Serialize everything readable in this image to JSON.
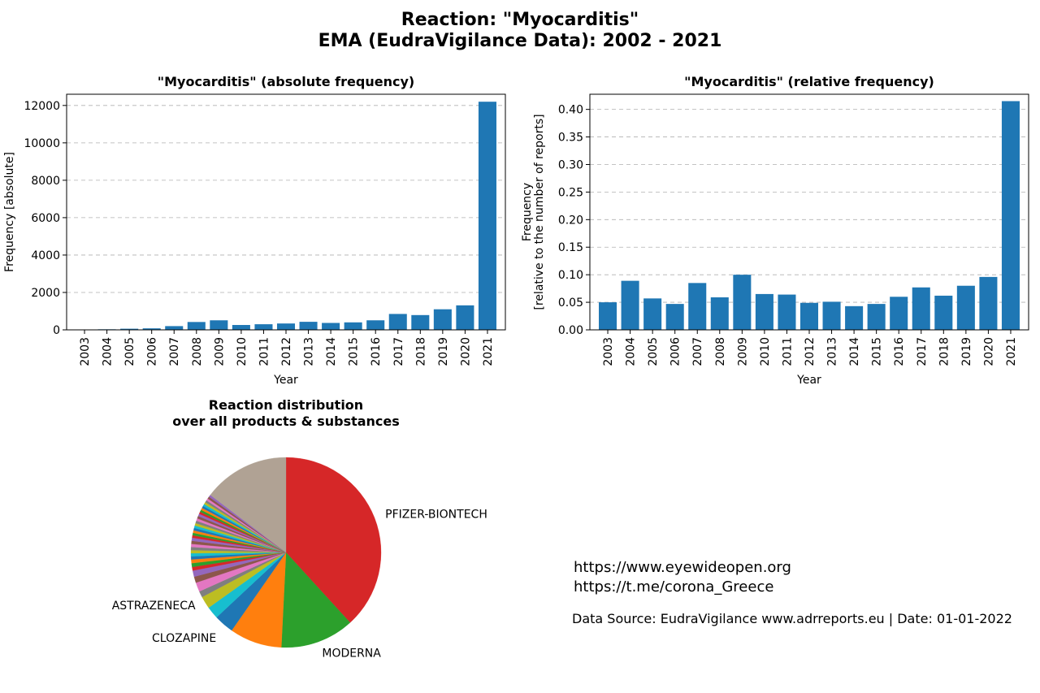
{
  "title_line1": "Reaction: \"Myocarditis\"",
  "title_line2": "EMA (EudraVigilance Data): 2002 - 2021",
  "chart_data": [
    {
      "type": "bar",
      "title": "\"Myocarditis\" (absolute frequency)",
      "xlabel": "Year",
      "ylabel": "Frequency [absolute]",
      "categories": [
        "2003",
        "2004",
        "2005",
        "2006",
        "2007",
        "2008",
        "2009",
        "2010",
        "2011",
        "2012",
        "2013",
        "2014",
        "2015",
        "2016",
        "2017",
        "2018",
        "2019",
        "2020",
        "2021"
      ],
      "values": [
        10,
        30,
        60,
        80,
        200,
        420,
        510,
        260,
        300,
        340,
        430,
        370,
        400,
        510,
        850,
        790,
        1100,
        1310,
        12200
      ],
      "ylim": [
        0,
        12600
      ],
      "yticks": [
        "0",
        "2000",
        "4000",
        "6000",
        "8000",
        "10000",
        "12000"
      ],
      "ytick_values": [
        0,
        2000,
        4000,
        6000,
        8000,
        10000,
        12000
      ],
      "grid": true,
      "color": "#1f77b4"
    },
    {
      "type": "bar",
      "title": "\"Myocarditis\" (relative frequency)",
      "xlabel": "Year",
      "ylabel_lines": [
        "Frequency",
        "[relative to the number of reports]"
      ],
      "categories": [
        "2003",
        "2004",
        "2005",
        "2006",
        "2007",
        "2008",
        "2009",
        "2010",
        "2011",
        "2012",
        "2013",
        "2014",
        "2015",
        "2016",
        "2017",
        "2018",
        "2019",
        "2020",
        "2021"
      ],
      "values": [
        0.05,
        0.089,
        0.057,
        0.047,
        0.085,
        0.059,
        0.1,
        0.065,
        0.064,
        0.049,
        0.051,
        0.043,
        0.047,
        0.06,
        0.077,
        0.062,
        0.08,
        0.096,
        0.415
      ],
      "ylim": [
        0,
        0.4275
      ],
      "yticks": [
        "0.00",
        "0.05",
        "0.10",
        "0.15",
        "0.20",
        "0.25",
        "0.30",
        "0.35",
        "0.40"
      ],
      "ytick_values": [
        0,
        0.05,
        0.1,
        0.15,
        0.2,
        0.25,
        0.3,
        0.35,
        0.4
      ],
      "grid": true,
      "color": "#1f77b4"
    },
    {
      "type": "pie",
      "title_lines": [
        "Reaction distribution",
        "over all products & substances"
      ],
      "slices": [
        {
          "label": "PFIZER-BIONTECH",
          "value": 36.5,
          "color": "#d62728"
        },
        {
          "label": "MODERNA",
          "value": 12.0,
          "color": "#2ca02c"
        },
        {
          "label": "",
          "value": 8.5,
          "color": "#ff7f0e"
        },
        {
          "label": "CLOZAPINE",
          "value": 3.2,
          "color": "#1f77b4"
        },
        {
          "label": "",
          "value": 2.0,
          "color": "#17becf"
        },
        {
          "label": "ASTRAZENECA",
          "value": 2.0,
          "color": "#bcbd22"
        },
        {
          "label": "",
          "value": 1.0,
          "color": "#7f7f7f"
        },
        {
          "label": "",
          "value": 1.5,
          "color": "#e377c2"
        },
        {
          "label": "",
          "value": 1.0,
          "color": "#8c564b"
        },
        {
          "label": "",
          "value": 1.0,
          "color": "#9467bd"
        },
        {
          "label": "",
          "value": 0.6,
          "color": "#d62728"
        },
        {
          "label": "",
          "value": 0.6,
          "color": "#2ca02c"
        },
        {
          "label": "",
          "value": 0.6,
          "color": "#ff7f0e"
        },
        {
          "label": "",
          "value": 0.5,
          "color": "#1f77b4"
        },
        {
          "label": "",
          "value": 0.5,
          "color": "#17becf"
        },
        {
          "label": "",
          "value": 0.5,
          "color": "#bcbd22"
        },
        {
          "label": "",
          "value": 0.5,
          "color": "#7f7f7f"
        },
        {
          "label": "",
          "value": 0.5,
          "color": "#e377c2"
        },
        {
          "label": "",
          "value": 0.5,
          "color": "#8c564b"
        },
        {
          "label": "",
          "value": 0.5,
          "color": "#9467bd"
        },
        {
          "label": "",
          "value": 0.4,
          "color": "#d62728"
        },
        {
          "label": "",
          "value": 0.4,
          "color": "#2ca02c"
        },
        {
          "label": "",
          "value": 0.4,
          "color": "#ff7f0e"
        },
        {
          "label": "",
          "value": 0.4,
          "color": "#1f77b4"
        },
        {
          "label": "",
          "value": 0.4,
          "color": "#17becf"
        },
        {
          "label": "",
          "value": 0.4,
          "color": "#bcbd22"
        },
        {
          "label": "",
          "value": 0.4,
          "color": "#7f7f7f"
        },
        {
          "label": "",
          "value": 0.4,
          "color": "#e377c2"
        },
        {
          "label": "",
          "value": 0.4,
          "color": "#8c564b"
        },
        {
          "label": "",
          "value": 0.4,
          "color": "#9467bd"
        },
        {
          "label": "",
          "value": 0.35,
          "color": "#d62728"
        },
        {
          "label": "",
          "value": 0.35,
          "color": "#2ca02c"
        },
        {
          "label": "",
          "value": 0.35,
          "color": "#ff7f0e"
        },
        {
          "label": "",
          "value": 0.35,
          "color": "#1f77b4"
        },
        {
          "label": "",
          "value": 0.35,
          "color": "#17becf"
        },
        {
          "label": "",
          "value": 0.35,
          "color": "#bcbd22"
        },
        {
          "label": "",
          "value": 0.35,
          "color": "#7f7f7f"
        },
        {
          "label": "",
          "value": 0.35,
          "color": "#e377c2"
        },
        {
          "label": "",
          "value": 0.35,
          "color": "#8c564b"
        },
        {
          "label": "",
          "value": 0.35,
          "color": "#9467bd"
        },
        {
          "label": "",
          "value": 14.0,
          "color": "#b0a294"
        }
      ]
    }
  ],
  "footer": {
    "link1": "https://www.eyewideopen.org",
    "link2": "https://t.me/corona_Greece",
    "source": "Data Source: EudraVigilance www.adrreports.eu | Date: 01-01-2022"
  }
}
